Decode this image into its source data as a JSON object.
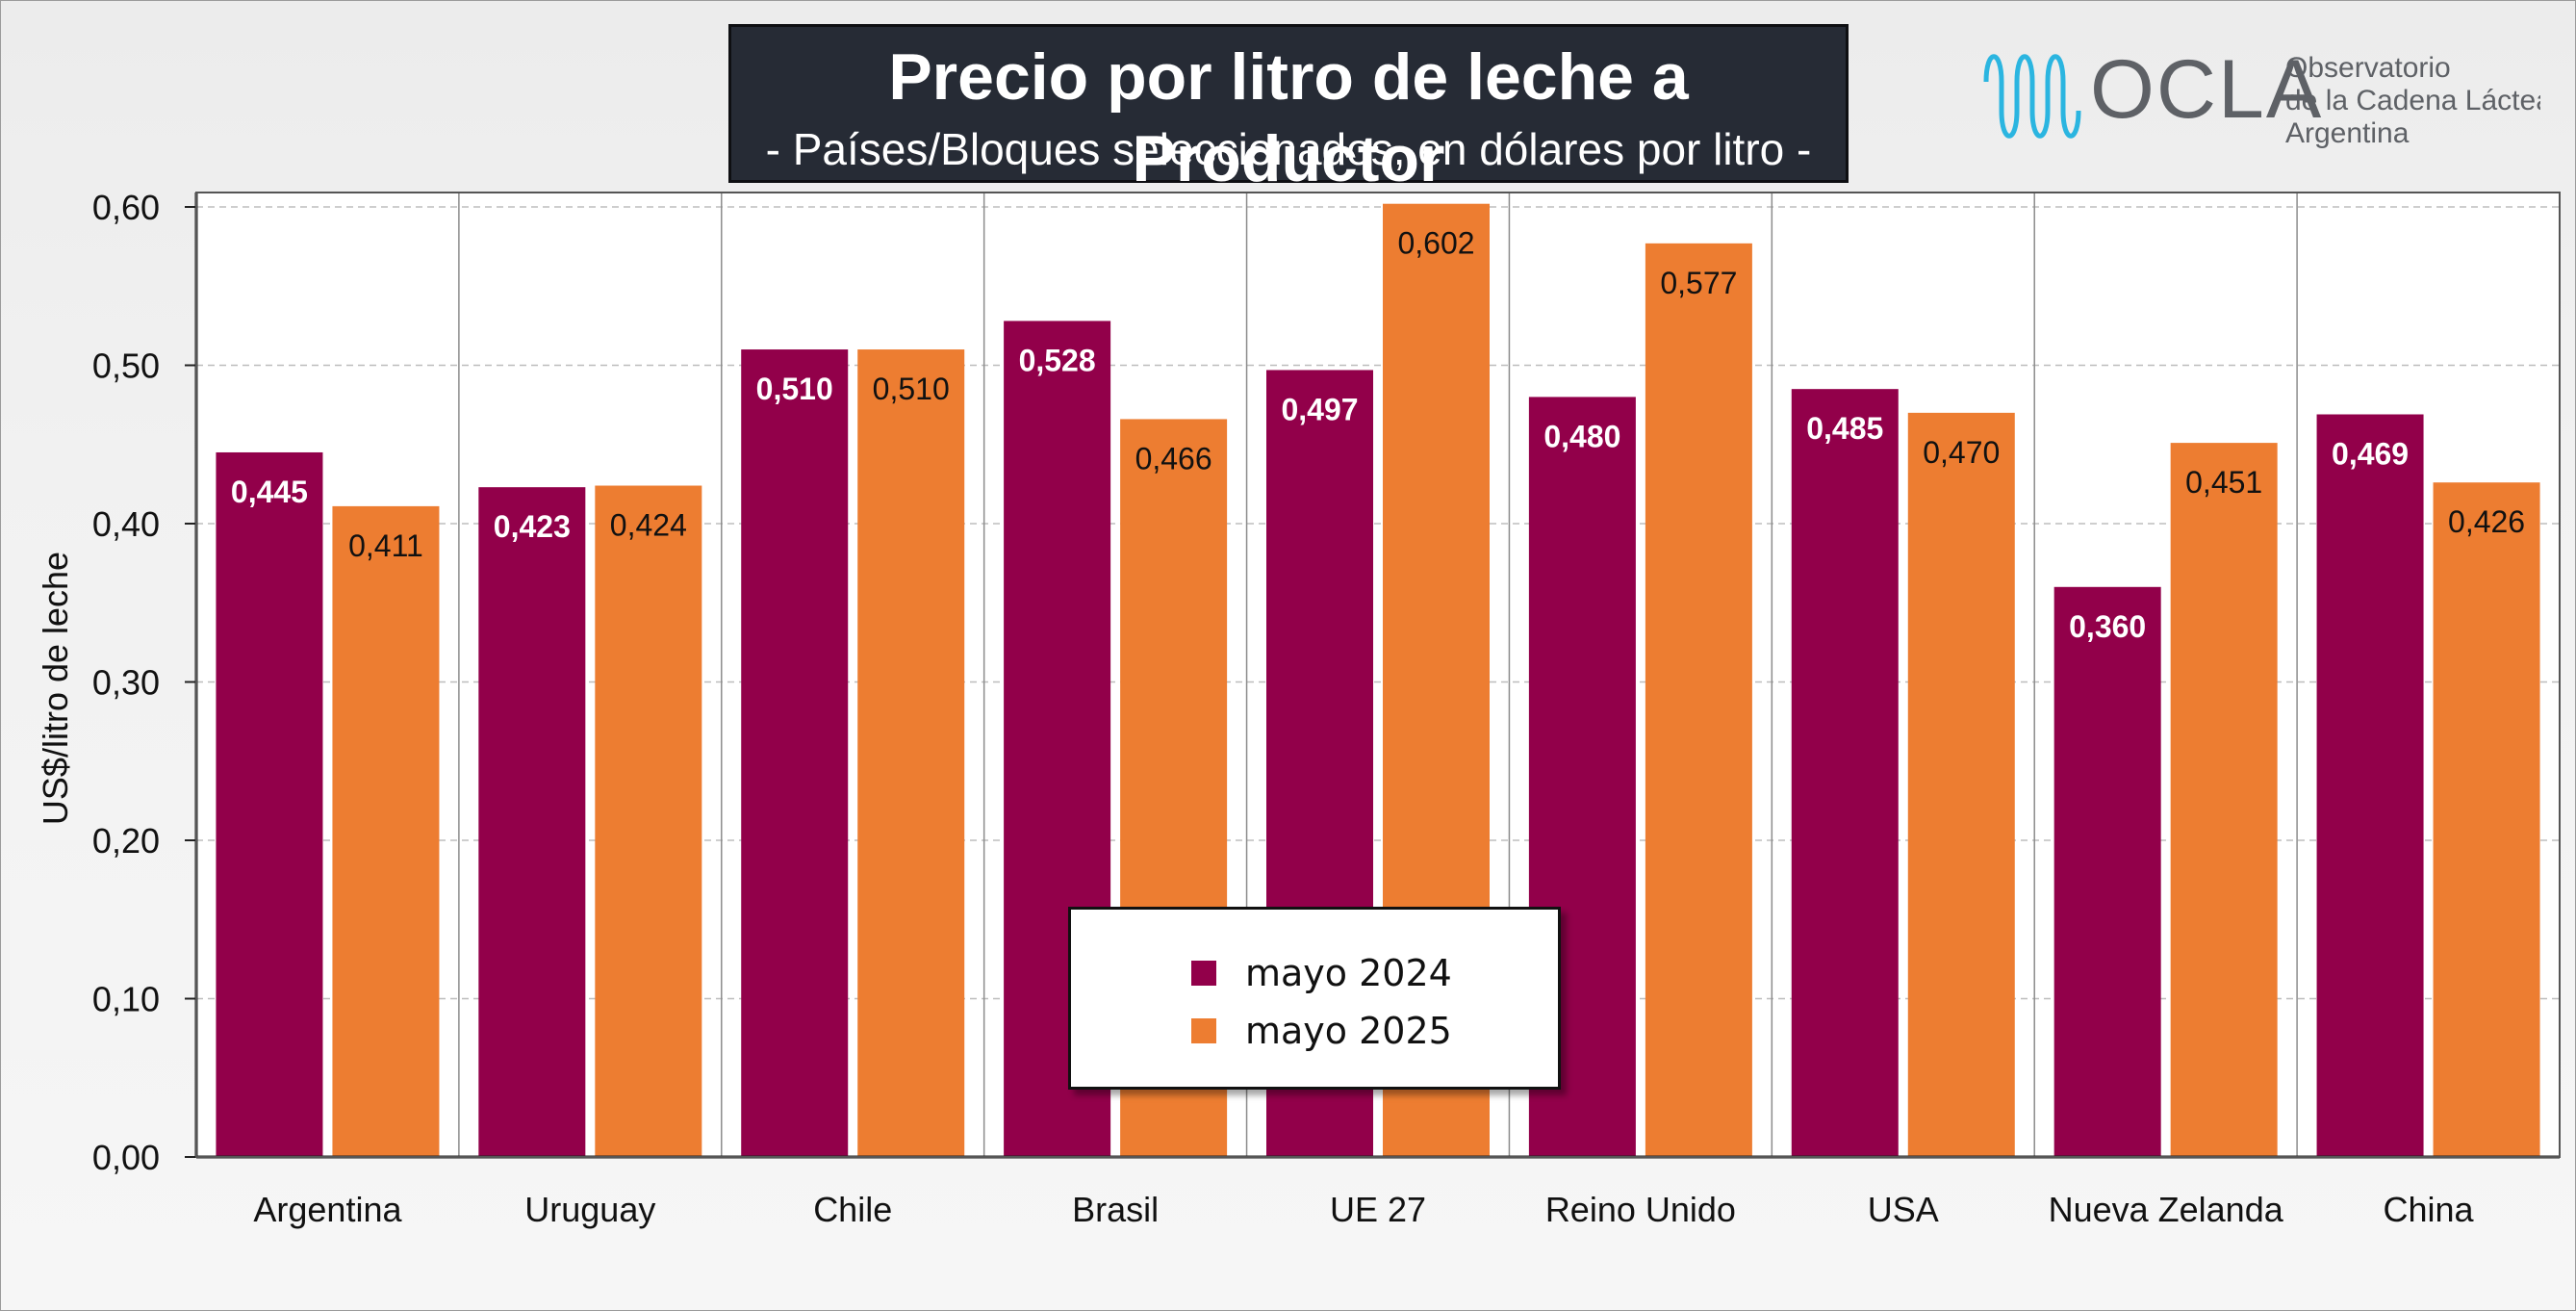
{
  "title": "Precio por litro de leche a Productor",
  "subtitle": "- Países/Bloques seleccionados, en dólares por litro -",
  "logo": {
    "name": "OCLA",
    "line1": "Observatorio",
    "line2": "de la Cadena Láctea",
    "line3": "Argentina"
  },
  "colors": {
    "series1": "#92004a",
    "series2": "#ed7d31",
    "title_bg": "#262b35",
    "logo_text": "#5e6166",
    "logo_wave": "#2bb5e0"
  },
  "chart_data": {
    "type": "bar",
    "ylabel": "US$/litro de leche",
    "xlabel": "",
    "ylim": [
      0,
      0.6
    ],
    "yticks": [
      "0,00",
      "0,10",
      "0,20",
      "0,30",
      "0,40",
      "0,50",
      "0,60"
    ],
    "grid": true,
    "legend_position": "bottom-center",
    "categories": [
      "Argentina",
      "Uruguay",
      "Chile",
      "Brasil",
      "UE 27",
      "Reino Unido",
      "USA",
      "Nueva Zelanda",
      "China"
    ],
    "series": [
      {
        "name": "mayo 2024",
        "values": [
          0.445,
          0.423,
          0.51,
          0.528,
          0.497,
          0.48,
          0.485,
          0.36,
          0.469
        ],
        "labels": [
          "0,445",
          "0,423",
          "0,510",
          "0,528",
          "0,497",
          "0,480",
          "0,485",
          "0,360",
          "0,469"
        ]
      },
      {
        "name": "mayo 2025",
        "values": [
          0.411,
          0.424,
          0.51,
          0.466,
          0.602,
          0.577,
          0.47,
          0.451,
          0.426
        ],
        "labels": [
          "0,411",
          "0,424",
          "0,510",
          "0,466",
          "0,602",
          "0,577",
          "0,470",
          "0,451",
          "0,426"
        ]
      }
    ]
  }
}
